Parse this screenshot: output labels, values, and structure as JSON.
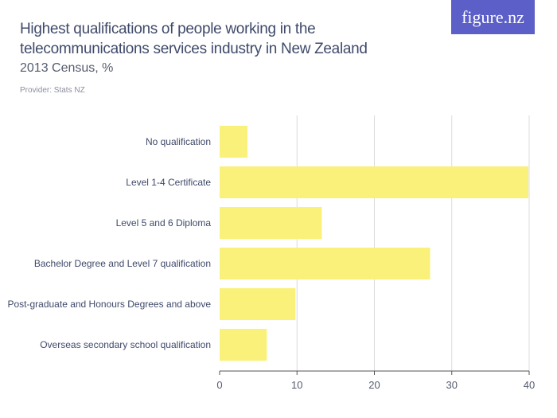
{
  "logo": "figure.nz",
  "chart_data": {
    "type": "bar",
    "orientation": "horizontal",
    "title": "Highest qualifications of people working in the telecommunications services industry in New Zealand",
    "subtitle": "2013 Census, %",
    "provider": "Provider: Stats NZ",
    "categories": [
      "No qualification",
      "Level 1-4 Certificate",
      "Level 5 and 6 Diploma",
      "Bachelor Degree and Level 7 qualification",
      "Post-graduate and Honours Degrees and above",
      "Overseas secondary school qualification"
    ],
    "values": [
      3.6,
      39.9,
      13.2,
      27.2,
      9.8,
      6.1
    ],
    "xlim": [
      0,
      40
    ],
    "xticks": [
      "0",
      "10",
      "20",
      "30",
      "40"
    ],
    "grid": true,
    "bar_color": "#f9f17a"
  }
}
